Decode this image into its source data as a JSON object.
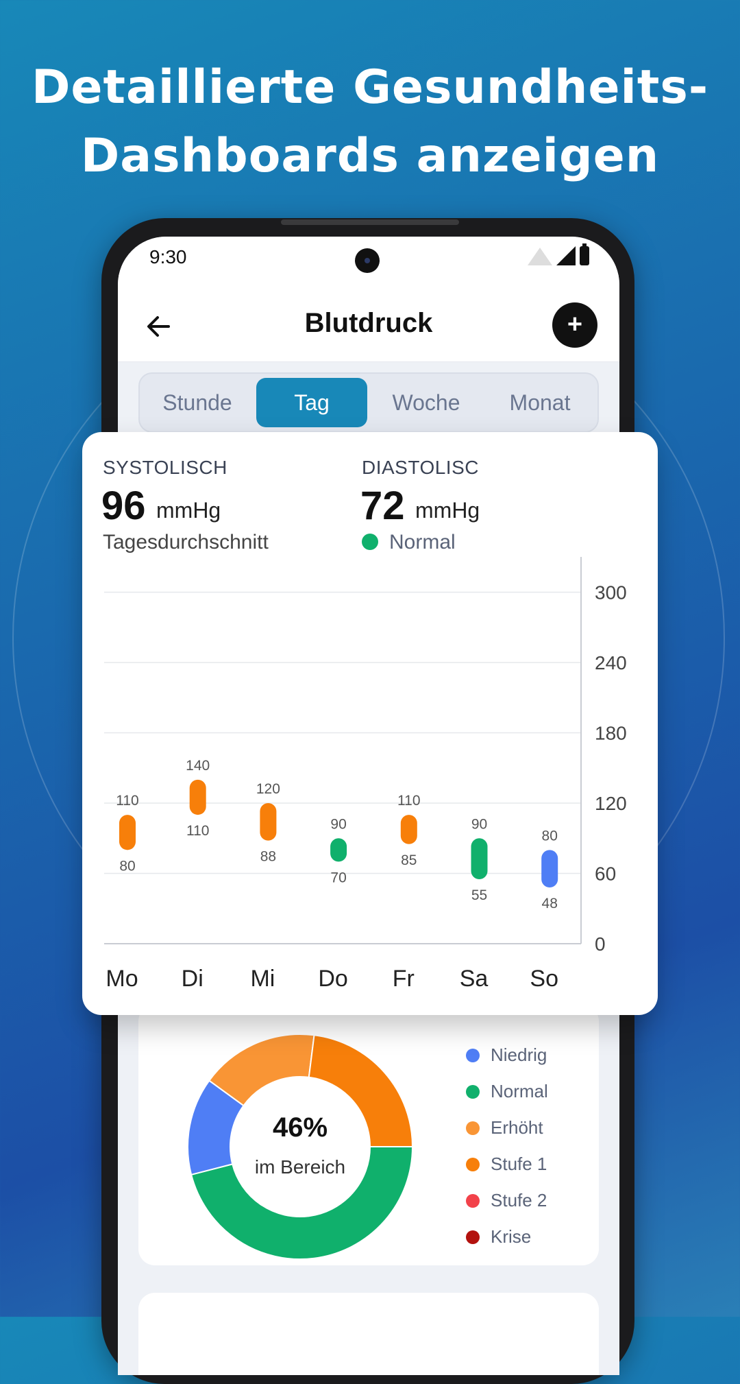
{
  "headline": {
    "line1": "Detaillierte Gesundheits-",
    "line2": "Dashboards anzeigen"
  },
  "status_bar": {
    "time": "9:30",
    "icons": [
      "wifi-icon",
      "signal-icon",
      "battery-icon"
    ]
  },
  "app_bar": {
    "title": "Blutdruck",
    "back_icon": "arrow-left-icon",
    "add_label": "+"
  },
  "tabs": [
    {
      "label": "Stunde",
      "active": false
    },
    {
      "label": "Tag",
      "active": true
    },
    {
      "label": "Woche",
      "active": false
    },
    {
      "label": "Monat",
      "active": false
    }
  ],
  "summary": {
    "systolic_label": "SYSTOLISCH",
    "systolic_value": "96",
    "systolic_unit": "mmHg",
    "systolic_sub": "Tagesdurchschnitt",
    "diastolic_label": "DIASTOLISC",
    "diastolic_value": "72",
    "diastolic_unit": "mmHg",
    "status": "Normal",
    "status_color": "#10b06c"
  },
  "chart_data": [
    {
      "type": "bar",
      "chart_subtype": "range",
      "categories": [
        "Mo",
        "Di",
        "Mi",
        "Do",
        "Fr",
        "Sa",
        "So"
      ],
      "series": [
        {
          "values_high": [
            110,
            140,
            120,
            90,
            110,
            90,
            80
          ],
          "values_low": [
            80,
            110,
            88,
            70,
            85,
            55,
            48
          ],
          "colors": [
            "#f77f0a",
            "#f77f0a",
            "#f77f0a",
            "#10b06c",
            "#f77f0a",
            "#10b06c",
            "#4f7ef5"
          ]
        }
      ],
      "y_ticks": [
        0,
        60,
        120,
        180,
        240,
        300
      ],
      "ylim": [
        0,
        300
      ],
      "y_axis_position": "right",
      "grid": true
    },
    {
      "type": "pie",
      "style": "donut",
      "slices": [
        {
          "label": "Normal",
          "value": 46,
          "color": "#10b06c"
        },
        {
          "label": "Niedrig",
          "value": 14,
          "color": "#4f7ef5"
        },
        {
          "label": "Erhöht",
          "value": 17,
          "color": "#f99535"
        },
        {
          "label": "Stufe 1",
          "value": 23,
          "color": "#f77f0a"
        }
      ],
      "center_value": "46%",
      "center_label": "im Bereich",
      "legend": [
        {
          "label": "Niedrig",
          "color": "#4f7ef5"
        },
        {
          "label": "Normal",
          "color": "#10b06c"
        },
        {
          "label": "Erhöht",
          "color": "#f99535"
        },
        {
          "label": "Stufe 1",
          "color": "#f77f0a"
        },
        {
          "label": "Stufe 2",
          "color": "#f2424a"
        },
        {
          "label": "Krise",
          "color": "#b3120e"
        }
      ]
    }
  ]
}
